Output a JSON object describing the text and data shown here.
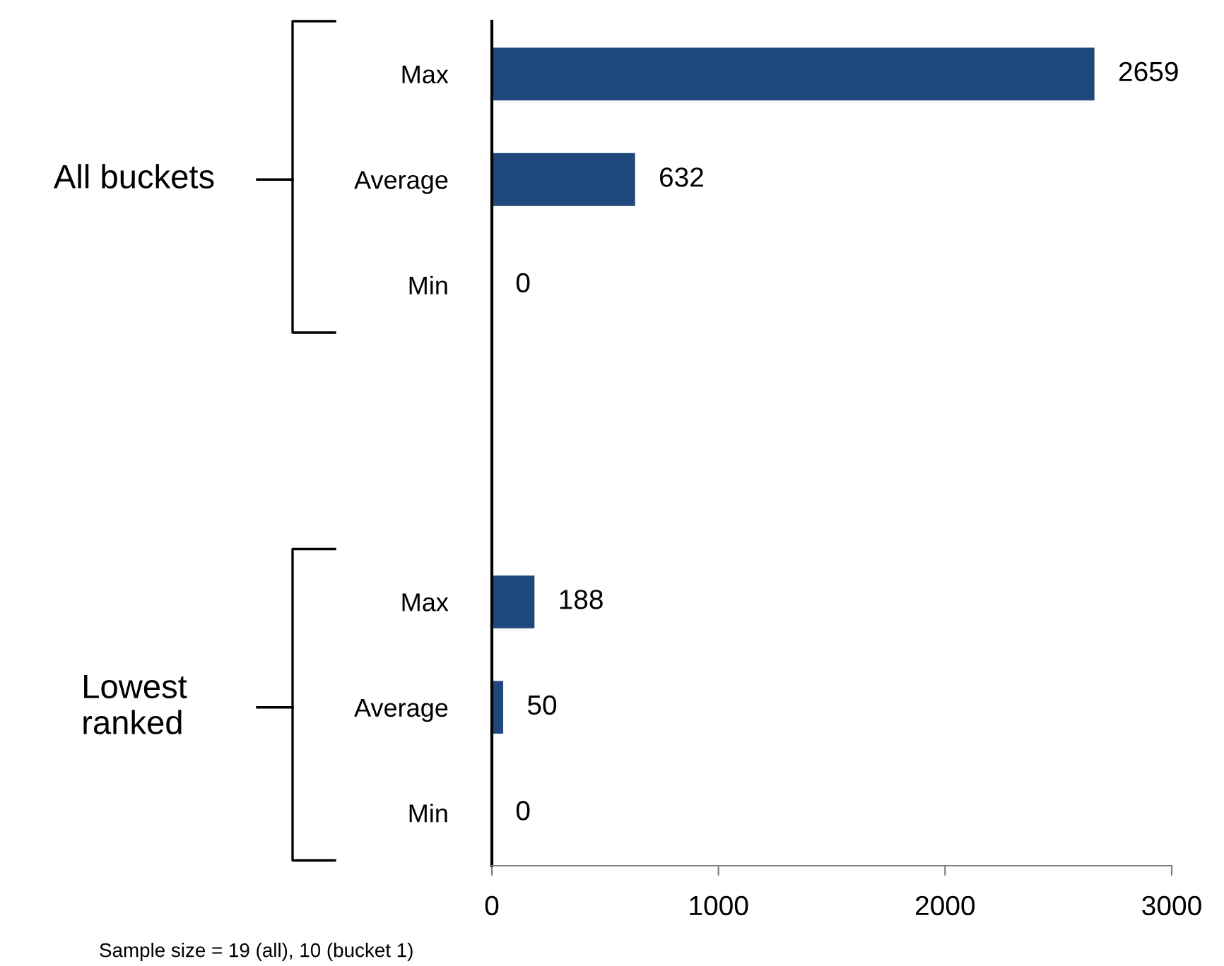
{
  "chart_data": {
    "type": "bar",
    "orientation": "horizontal",
    "categories": [
      "Max",
      "Average",
      "Min",
      null,
      null,
      "Max",
      "Average",
      "Min"
    ],
    "values": [
      2659,
      632,
      0,
      null,
      null,
      188,
      50,
      0
    ],
    "color": "#1f497d",
    "xlim": [
      0,
      3000
    ],
    "xticks": [
      0,
      1000,
      2000,
      3000
    ],
    "data_labels": true,
    "grid": false,
    "annotations": [
      "All buckets",
      "Lowest\nranked",
      "Sample size = 19 (all), 10 (bucket 1)"
    ]
  }
}
